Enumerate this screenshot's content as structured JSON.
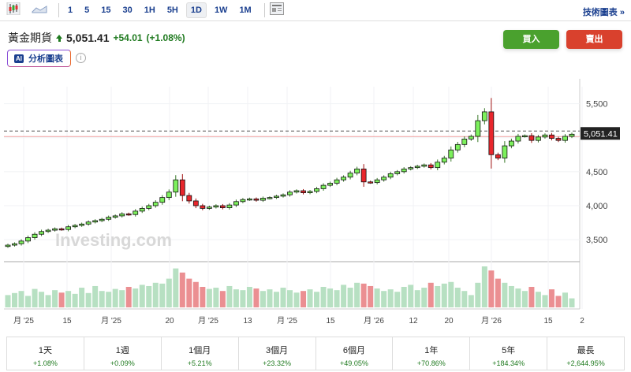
{
  "toolbar": {
    "intervals": [
      "1",
      "5",
      "15",
      "30",
      "1H",
      "5H",
      "1D",
      "1W",
      "1M"
    ],
    "active_interval": "1D",
    "tech_chart_link": "技術圖表 »"
  },
  "header": {
    "name": "黃金期貨",
    "price": "5,051.41",
    "change": "+54.01",
    "change_pct": "(+1.08%)",
    "ai_button": "分析圖表",
    "ai_badge": "AI",
    "info": "i"
  },
  "actions": {
    "buy": "買入",
    "sell": "賣出"
  },
  "colors": {
    "up": "#7cf05c",
    "down": "#e8262c",
    "vol_up": "#b7e0c2",
    "vol_down": "#eb8f92",
    "buy": "#4aa12e",
    "sell": "#d9412d"
  },
  "chart_data": {
    "type": "candlestick",
    "ylim": [
      3200,
      5750
    ],
    "yticks": [
      3500,
      4000,
      4500,
      5000,
      5500
    ],
    "ytick_labels": [
      "3,500",
      "4,000",
      "4,500",
      "",
      "5,500"
    ],
    "last_price_label": "5,051.41",
    "last_price": 5051.41,
    "watermark": "Investing.com",
    "xtick_labels": [
      "月 '25",
      "15",
      "月 '25",
      "20",
      "月 '25",
      "13",
      "月 '25",
      "15",
      "月 '26",
      "12",
      "20",
      "月 '26",
      "15",
      "2"
    ],
    "closes": [
      3420,
      3440,
      3480,
      3530,
      3580,
      3620,
      3640,
      3660,
      3650,
      3690,
      3710,
      3730,
      3760,
      3780,
      3800,
      3830,
      3850,
      3880,
      3870,
      3920,
      3960,
      4000,
      4050,
      4120,
      4200,
      4380,
      4150,
      4070,
      4000,
      3960,
      3980,
      4000,
      3970,
      4010,
      4060,
      4090,
      4100,
      4080,
      4110,
      4120,
      4140,
      4160,
      4200,
      4220,
      4190,
      4210,
      4250,
      4300,
      4330,
      4380,
      4420,
      4480,
      4540,
      4350,
      4340,
      4380,
      4420,
      4470,
      4500,
      4540,
      4560,
      4580,
      4600,
      4560,
      4640,
      4700,
      4820,
      4900,
      4980,
      5020,
      5250,
      5380,
      4750,
      4700,
      4880,
      4950,
      5020,
      5030,
      4960,
      5010,
      5040,
      4990,
      4960,
      5020,
      5051
    ],
    "volumes": [
      30,
      35,
      40,
      28,
      45,
      38,
      30,
      42,
      36,
      40,
      33,
      48,
      35,
      52,
      40,
      38,
      45,
      42,
      50,
      46,
      55,
      52,
      60,
      58,
      70,
      95,
      85,
      70,
      62,
      50,
      45,
      48,
      40,
      52,
      44,
      42,
      50,
      46,
      40,
      44,
      38,
      48,
      42,
      36,
      40,
      44,
      38,
      50,
      46,
      42,
      55,
      48,
      60,
      58,
      52,
      46,
      40,
      44,
      38,
      50,
      55,
      42,
      48,
      60,
      52,
      58,
      62,
      48,
      40,
      30,
      60,
      100,
      90,
      70,
      60,
      52,
      46,
      40,
      50,
      38,
      30,
      44,
      28,
      36,
      22
    ]
  },
  "performance": [
    {
      "label": "1天",
      "value": "+1.08%"
    },
    {
      "label": "1週",
      "value": "+0.09%"
    },
    {
      "label": "1個月",
      "value": "+5.21%"
    },
    {
      "label": "3個月",
      "value": "+23.32%"
    },
    {
      "label": "6個月",
      "value": "+49.05%"
    },
    {
      "label": "1年",
      "value": "+70.86%"
    },
    {
      "label": "5年",
      "value": "+184.34%"
    },
    {
      "label": "最長",
      "value": "+2,644.95%"
    }
  ]
}
